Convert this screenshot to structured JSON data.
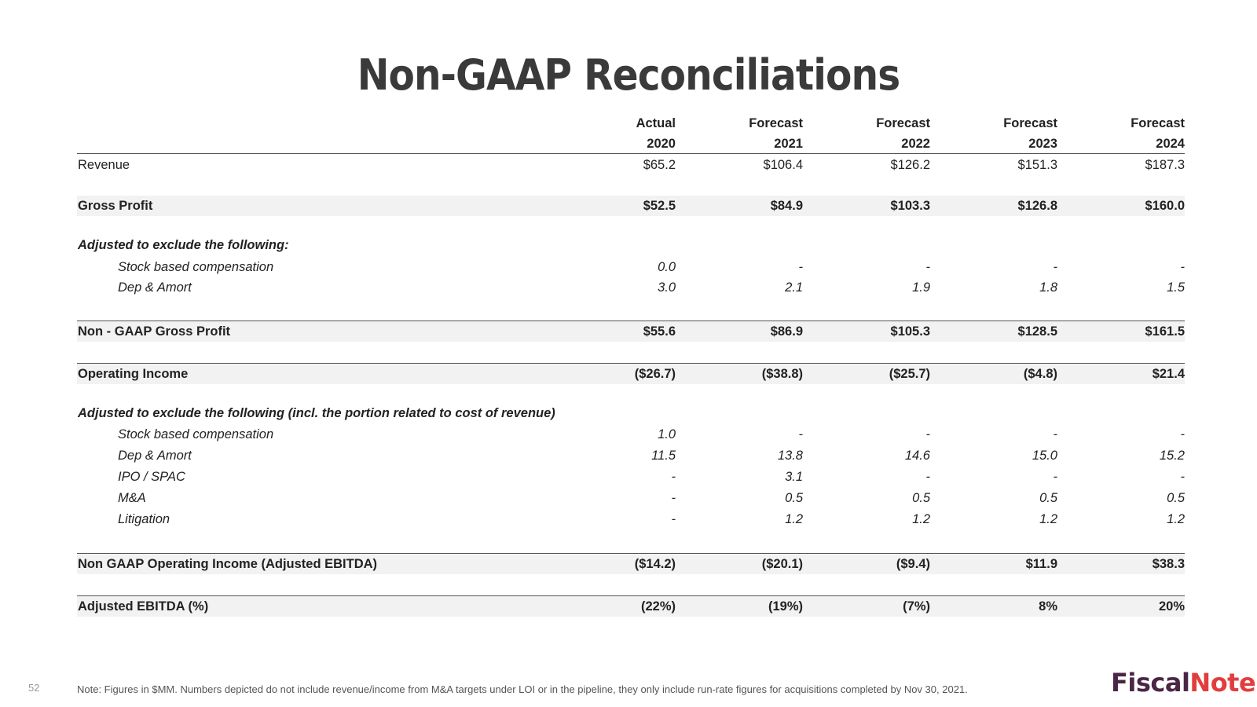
{
  "title": "Non-GAAP Reconciliations",
  "header": {
    "types": [
      "Actual",
      "Forecast",
      "Forecast",
      "Forecast",
      "Forecast"
    ],
    "years": [
      "2020",
      "2021",
      "2022",
      "2023",
      "2024"
    ]
  },
  "rows": {
    "revenue": {
      "label": "Revenue",
      "values": [
        "$65.2",
        "$106.4",
        "$126.2",
        "$151.3",
        "$187.3"
      ]
    },
    "gross_profit": {
      "label": "Gross Profit",
      "values": [
        "$52.5",
        "$84.9",
        "$103.3",
        "$126.8",
        "$160.0"
      ]
    },
    "adj1_heading": {
      "label": "Adjusted to exclude the following:"
    },
    "sbc1": {
      "label": "Stock based compensation",
      "values": [
        "0.0",
        "-",
        "-",
        "-",
        "-"
      ]
    },
    "da1": {
      "label": "Dep & Amort",
      "values": [
        "3.0",
        "2.1",
        "1.9",
        "1.8",
        "1.5"
      ]
    },
    "nongaap_gp": {
      "label": "Non - GAAP Gross Profit",
      "values": [
        "$55.6",
        "$86.9",
        "$105.3",
        "$128.5",
        "$161.5"
      ]
    },
    "op_income": {
      "label": "Operating Income",
      "values": [
        "($26.7)",
        "($38.8)",
        "($25.7)",
        "($4.8)",
        "$21.4"
      ]
    },
    "adj2_heading": {
      "label": "Adjusted to exclude the following (incl. the portion related to cost of revenue)"
    },
    "sbc2": {
      "label": "Stock based compensation",
      "values": [
        "1.0",
        "-",
        "-",
        "-",
        "-"
      ]
    },
    "da2": {
      "label": "Dep & Amort",
      "values": [
        "11.5",
        "13.8",
        "14.6",
        "15.0",
        "15.2"
      ]
    },
    "ipo": {
      "label": "IPO / SPAC",
      "values": [
        "-",
        "3.1",
        "-",
        "-",
        "-"
      ]
    },
    "ma": {
      "label": "M&A",
      "values": [
        "-",
        "0.5",
        "0.5",
        "0.5",
        "0.5"
      ]
    },
    "litigation": {
      "label": "Litigation",
      "values": [
        "-",
        "1.2",
        "1.2",
        "1.2",
        "1.2"
      ]
    },
    "nongaap_oi": {
      "label": "Non GAAP Operating Income (Adjusted EBITDA)",
      "values": [
        "($14.2)",
        "($20.1)",
        "($9.4)",
        "$11.9",
        "$38.3"
      ]
    },
    "ebitda_pct": {
      "label": "Adjusted EBITDA (%)",
      "values": [
        "(22%)",
        "(19%)",
        "(7%)",
        "8%",
        "20%"
      ]
    }
  },
  "note": "Note: Figures in $MM. Numbers depicted do not include revenue/income from M&A targets under LOI or in the pipeline, they only include run-rate figures for acquisitions completed by Nov 30, 2021.",
  "page_number": "52",
  "logo": {
    "part1": "Fiscal",
    "part2": "Note"
  }
}
